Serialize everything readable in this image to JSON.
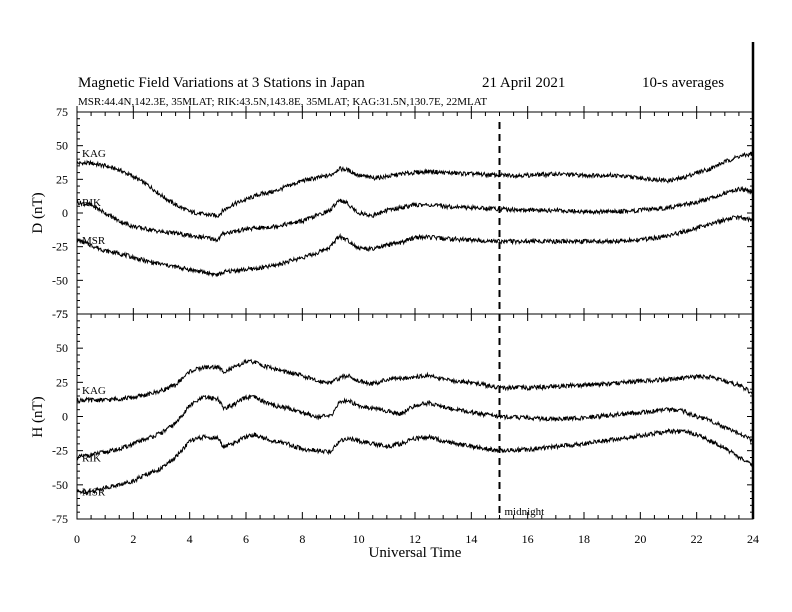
{
  "chart_data": {
    "type": "line",
    "title": {
      "main": "Magnetic Field Variations at 3 Stations in Japan",
      "date": "21  April     2021",
      "averaging": "10-s averages"
    },
    "subtitle": "MSR:44.4N,142.3E, 35MLAT;   RIK:43.5N,143.8E, 35MLAT;  KAG:31.5N,130.7E, 22MLAT",
    "xlabel": "Universal Time",
    "xlim": [
      0,
      24
    ],
    "xticks": [
      "0",
      "2",
      "4",
      "6",
      "8",
      "10",
      "12",
      "14",
      "16",
      "18",
      "20",
      "22",
      "24"
    ],
    "grid": false,
    "colors": {
      "line": "#000000",
      "background": "#ffffff"
    },
    "annotation": {
      "x": 15,
      "label": "midnight",
      "style": "dashed"
    },
    "panels": [
      {
        "id": "D",
        "ylabel": "D (nT)",
        "ylim": [
          -75,
          75
        ],
        "yticks": [
          "75",
          "50",
          "25",
          "0",
          "-25",
          "-50",
          "-75"
        ],
        "series": [
          {
            "name": "KAG",
            "x": [
              0,
              0.5,
              1,
              1.5,
              2,
              2.5,
              3,
              3.5,
              4,
              4.5,
              5,
              5.2,
              5.5,
              6,
              6.5,
              7,
              7.5,
              8,
              8.5,
              9,
              9.3,
              9.6,
              10,
              10.5,
              11,
              11.5,
              12,
              12.5,
              13,
              14,
              15,
              16,
              17,
              18,
              19,
              20,
              21,
              21.5,
              22,
              22.5,
              23,
              23.5,
              24
            ],
            "values": [
              37,
              37,
              35,
              32,
              27,
              21,
              13,
              6,
              1,
              -1,
              -2,
              2,
              6,
              10,
              14,
              16,
              20,
              24,
              26,
              28,
              33,
              32,
              28,
              26,
              27,
              29,
              30,
              31,
              30,
              29,
              28,
              28,
              29,
              28,
              28,
              26,
              24,
              26,
              30,
              33,
              38,
              42,
              44
            ]
          },
          {
            "name": "RIK",
            "x": [
              0,
              0.5,
              1,
              1.5,
              2,
              2.5,
              3,
              3.5,
              4,
              4.5,
              5,
              5.2,
              5.5,
              6,
              6.5,
              7,
              7.5,
              8,
              8.5,
              9,
              9.3,
              9.6,
              10,
              10.5,
              11,
              11.5,
              12,
              12.5,
              13,
              14,
              15,
              16,
              17,
              18,
              19,
              20,
              21,
              21.5,
              22,
              22.5,
              23,
              23.5,
              24
            ],
            "values": [
              8,
              6,
              0,
              -6,
              -10,
              -12,
              -14,
              -15,
              -17,
              -18,
              -20,
              -15,
              -14,
              -12,
              -11,
              -10,
              -8,
              -6,
              -2,
              2,
              10,
              7,
              0,
              -2,
              2,
              4,
              6,
              6,
              5,
              4,
              3,
              2,
              2,
              1,
              1,
              2,
              4,
              6,
              8,
              11,
              15,
              18,
              16
            ]
          },
          {
            "name": "MSR",
            "x": [
              0,
              0.5,
              1,
              1.5,
              2,
              2.5,
              3,
              3.5,
              4,
              4.5,
              5,
              5.2,
              5.5,
              6,
              6.5,
              7,
              7.5,
              8,
              8.5,
              9,
              9.3,
              9.6,
              10,
              10.5,
              11,
              11.5,
              12,
              12.5,
              13,
              14,
              15,
              16,
              17,
              18,
              19,
              20,
              21,
              21.5,
              22,
              22.5,
              23,
              23.5,
              24
            ],
            "values": [
              -20,
              -24,
              -28,
              -30,
              -33,
              -36,
              -38,
              -40,
              -42,
              -44,
              -46,
              -44,
              -43,
              -42,
              -41,
              -39,
              -36,
              -33,
              -30,
              -25,
              -17,
              -20,
              -26,
              -27,
              -24,
              -22,
              -18,
              -18,
              -19,
              -20,
              -21,
              -21,
              -21,
              -21,
              -21,
              -20,
              -17,
              -14,
              -11,
              -8,
              -5,
              -3,
              -6
            ]
          }
        ]
      },
      {
        "id": "H",
        "ylabel": "H (nT)",
        "ylim": [
          -75,
          75
        ],
        "yticks": [
          "75",
          "50",
          "25",
          "0",
          "-25",
          "-50",
          "-75"
        ],
        "series": [
          {
            "name": "KAG",
            "x": [
              0,
              0.5,
              1,
              1.5,
              2,
              2.5,
              3,
              3.5,
              4,
              4.5,
              5,
              5.2,
              5.5,
              6,
              6.3,
              6.5,
              7,
              7.5,
              8,
              8.5,
              9,
              9.3,
              9.6,
              10,
              10.5,
              11,
              11.5,
              12,
              12.5,
              13,
              14,
              15,
              16,
              17,
              18,
              19,
              20,
              21,
              21.5,
              22,
              22.5,
              23,
              23.5,
              24
            ],
            "values": [
              12,
              12,
              12,
              13,
              14,
              16,
              19,
              23,
              33,
              36,
              36,
              33,
              35,
              40,
              40,
              38,
              35,
              32,
              30,
              26,
              25,
              28,
              30,
              26,
              24,
              27,
              28,
              29,
              30,
              27,
              25,
              21,
              21,
              22,
              23,
              24,
              26,
              27,
              28,
              29,
              29,
              26,
              23,
              17
            ]
          },
          {
            "name": "RIK",
            "x": [
              0,
              0.5,
              1,
              1.5,
              2,
              2.5,
              3,
              3.5,
              4,
              4.5,
              5,
              5.2,
              5.5,
              6,
              6.3,
              6.5,
              7,
              7.5,
              8,
              8.5,
              9,
              9.3,
              9.6,
              10,
              10.5,
              11,
              11.5,
              12,
              12.5,
              13,
              14,
              15,
              16,
              17,
              18,
              19,
              20,
              21,
              21.5,
              22,
              22.5,
              23,
              23.5,
              24
            ],
            "values": [
              -30,
              -28,
              -26,
              -24,
              -20,
              -16,
              -12,
              -5,
              8,
              14,
              13,
              6,
              8,
              14,
              14,
              12,
              8,
              6,
              3,
              0,
              0,
              10,
              12,
              8,
              6,
              4,
              2,
              8,
              10,
              7,
              3,
              0,
              -1,
              -2,
              -1,
              1,
              3,
              5,
              4,
              0,
              -3,
              -8,
              -12,
              -18
            ]
          },
          {
            "name": "MSR",
            "x": [
              0,
              0.5,
              1,
              1.5,
              2,
              2.5,
              3,
              3.5,
              4,
              4.5,
              5,
              5.2,
              5.5,
              6,
              6.3,
              6.5,
              7,
              7.5,
              8,
              8.5,
              9,
              9.3,
              9.6,
              10,
              10.5,
              11,
              11.5,
              12,
              12.5,
              13,
              14,
              15,
              16,
              17,
              18,
              19,
              20,
              21,
              21.5,
              22,
              22.5,
              23,
              23.5,
              24
            ],
            "values": [
              -55,
              -55,
              -52,
              -50,
              -47,
              -42,
              -38,
              -30,
              -18,
              -15,
              -16,
              -22,
              -20,
              -15,
              -13,
              -15,
              -18,
              -20,
              -24,
              -25,
              -26,
              -18,
              -16,
              -18,
              -20,
              -22,
              -20,
              -16,
              -15,
              -18,
              -22,
              -25,
              -24,
              -22,
              -20,
              -17,
              -14,
              -11,
              -11,
              -13,
              -18,
              -23,
              -30,
              -36
            ]
          }
        ]
      }
    ]
  }
}
